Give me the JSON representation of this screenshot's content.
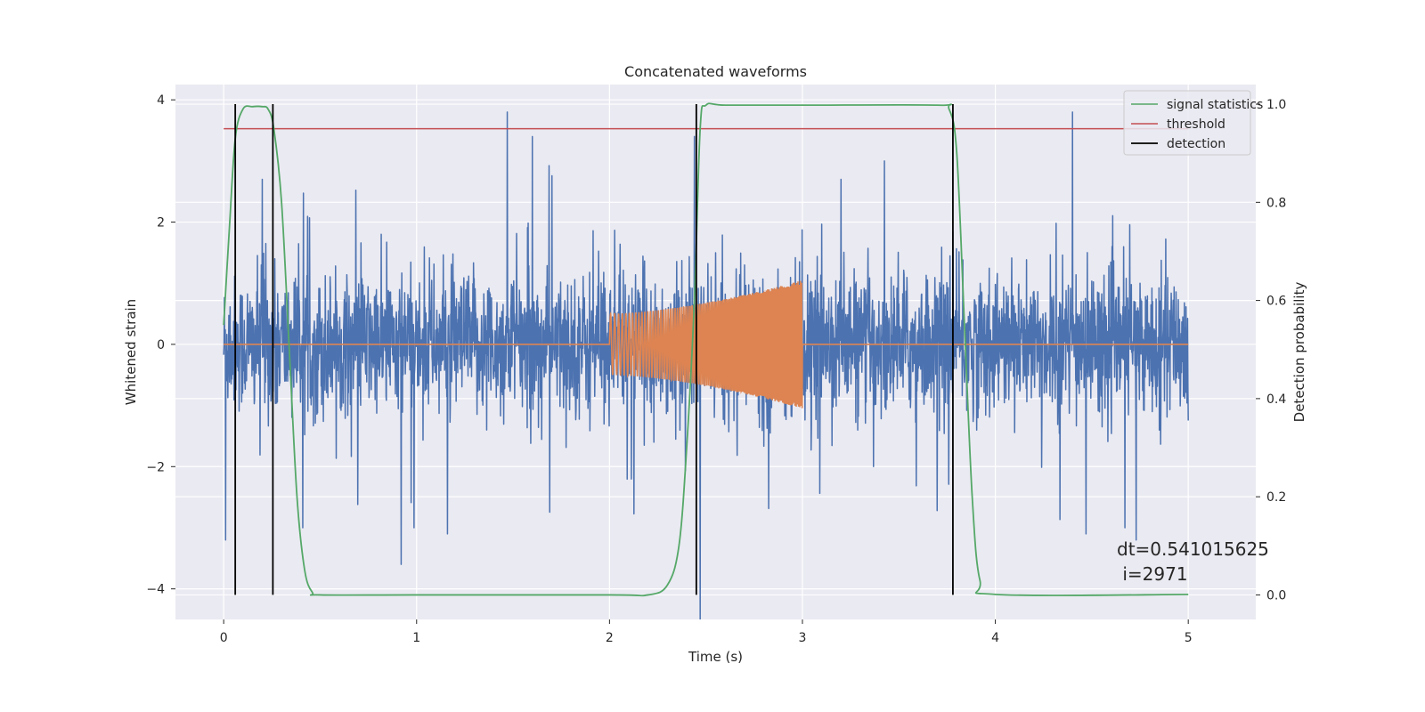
{
  "chart_data": {
    "type": "line",
    "title": "Concatenated waveforms",
    "xlabel": "Time (s)",
    "ylabel": "Whitened strain",
    "ylabel_right": "Detection probability",
    "xlim": [
      -0.25,
      5.35
    ],
    "ylim": [
      -4.5,
      4.25
    ],
    "ylim_right": [
      -0.05,
      1.04
    ],
    "x_ticks": [
      0,
      1,
      2,
      3,
      4,
      5
    ],
    "x_tick_labels": [
      "0",
      "1",
      "2",
      "3",
      "4",
      "5"
    ],
    "y_ticks": [
      -4,
      -2,
      0,
      2,
      4
    ],
    "y_tick_labels": [
      "−4",
      "−2",
      "0",
      "2",
      "4"
    ],
    "y_ticks_right": [
      0.0,
      0.2,
      0.4,
      0.6,
      0.8,
      1.0
    ],
    "y_tick_labels_right": [
      "0.0",
      "0.2",
      "0.4",
      "0.6",
      "0.8",
      "1.0"
    ],
    "grid": true,
    "background_color": "#eaeaf2",
    "series": [
      {
        "name": "",
        "kind": "noise",
        "color": "#4c72b0",
        "x_range": [
          0,
          5
        ],
        "typical_amplitude": 1.2,
        "extremes": [
          {
            "x": 0.01,
            "y": -3.2
          },
          {
            "x": 1.47,
            "y": 3.8
          },
          {
            "x": 0.92,
            "y": -3.6
          },
          {
            "x": 2.47,
            "y": -4.5
          },
          {
            "x": 4.4,
            "y": 3.8
          },
          {
            "x": 4.47,
            "y": -3.1
          },
          {
            "x": 1.6,
            "y": 3.4
          },
          {
            "x": 2.44,
            "y": 3.4
          },
          {
            "x": 4.73,
            "y": -3.2
          },
          {
            "x": 0.2,
            "y": 2.7
          },
          {
            "x": 1.16,
            "y": -3.1
          },
          {
            "x": 3.2,
            "y": 2.7
          }
        ]
      },
      {
        "name": "",
        "kind": "chirp",
        "color": "#dd8452",
        "x_range": [
          2.0,
          3.0
        ],
        "amplitude_start": 0.5,
        "amplitude_end": 1.05,
        "baseline_y": 0
      }
    ],
    "right_axis_series": [
      {
        "name": "signal statistics",
        "color": "#55a868",
        "x": [
          0.0,
          0.03,
          0.06,
          0.1,
          0.15,
          0.2,
          0.23,
          0.26,
          0.3,
          0.34,
          0.38,
          0.42,
          0.46,
          0.5,
          1.0,
          2.0,
          2.2,
          2.3,
          2.36,
          2.4,
          2.44,
          2.47,
          2.5,
          2.6,
          3.0,
          3.7,
          3.76,
          3.8,
          3.84,
          3.88,
          3.92,
          4.0,
          5.0
        ],
        "y": [
          0.55,
          0.75,
          0.93,
          0.99,
          0.995,
          0.995,
          0.99,
          0.95,
          0.8,
          0.5,
          0.2,
          0.05,
          0.005,
          0.0,
          0.0,
          0.0,
          0.0,
          0.02,
          0.1,
          0.3,
          0.6,
          0.95,
          0.998,
          0.998,
          0.998,
          0.998,
          0.99,
          0.9,
          0.55,
          0.2,
          0.03,
          0.001,
          0.001
        ]
      }
    ],
    "threshold": {
      "name": "threshold",
      "color": "#c44e52",
      "value": 0.95,
      "x_range": [
        0,
        5
      ]
    },
    "detections": {
      "name": "detection",
      "color": "#000000",
      "x": [
        0.06,
        0.255,
        2.45,
        3.78
      ]
    },
    "legend_position": "top-right",
    "annotation": {
      "line1": "dt=0.541015625",
      "line2": " i=2971"
    }
  }
}
